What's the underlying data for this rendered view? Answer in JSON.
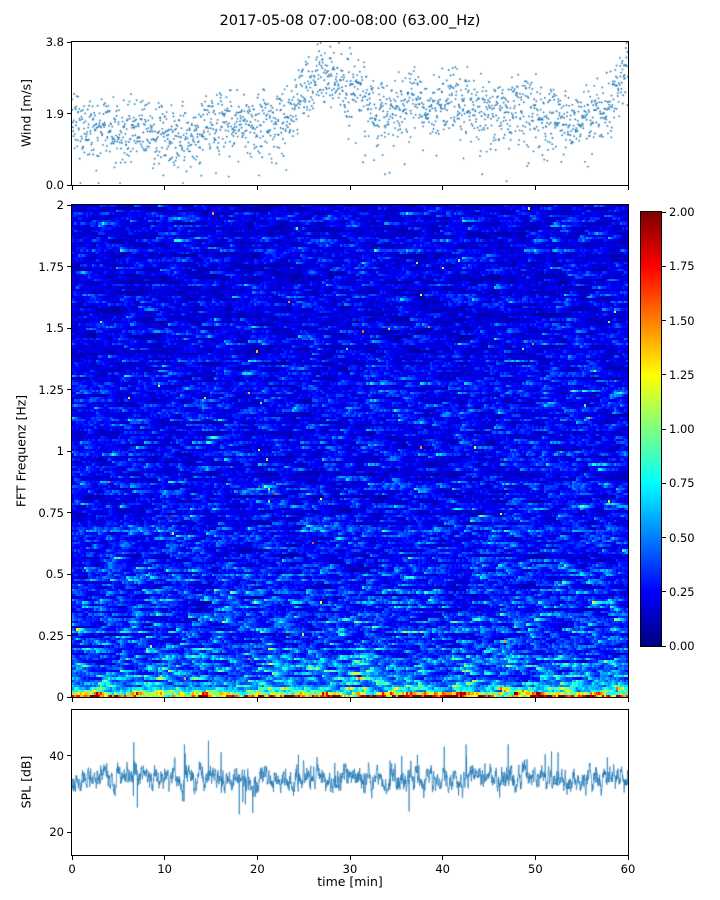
{
  "title": "2017-05-08 07:00-08:00 (63.00_Hz)",
  "colors": {
    "scatter": "#1f77b4",
    "line": "#1f77b4",
    "spine": "#000000",
    "background": "#ffffff"
  },
  "xaxis": {
    "label": "time [min]",
    "lim": [
      0,
      60
    ],
    "ticks": [
      {
        "v": 0,
        "label": "0"
      },
      {
        "v": 10,
        "label": "10"
      },
      {
        "v": 20,
        "label": "20"
      },
      {
        "v": 30,
        "label": "30"
      },
      {
        "v": 40,
        "label": "40"
      },
      {
        "v": 50,
        "label": "50"
      },
      {
        "v": 60,
        "label": "60"
      }
    ]
  },
  "colorbar": {
    "colormap": "jet",
    "lim": [
      0,
      2
    ],
    "ticks": [
      {
        "v": 0.0,
        "label": "0.00"
      },
      {
        "v": 0.25,
        "label": "0.25"
      },
      {
        "v": 0.5,
        "label": "0.50"
      },
      {
        "v": 0.75,
        "label": "0.75"
      },
      {
        "v": 1.0,
        "label": "1.00"
      },
      {
        "v": 1.25,
        "label": "1.25"
      },
      {
        "v": 1.5,
        "label": "1.50"
      },
      {
        "v": 1.75,
        "label": "1.75"
      },
      {
        "v": 2.0,
        "label": "2.00"
      }
    ]
  },
  "chart_data": [
    {
      "type": "scatter",
      "name": "wind",
      "ylabel": "Wind [m/s]",
      "ylim": [
        0,
        3.8
      ],
      "yticks": [
        {
          "v": 0.0,
          "label": "0.0"
        },
        {
          "v": 1.9,
          "label": "1.9"
        },
        {
          "v": 3.8,
          "label": "3.8"
        }
      ],
      "xlim": [
        0,
        60
      ],
      "marker": "point",
      "points": 1900,
      "spread": 0.42,
      "seed": 20170508,
      "profile_x": [
        0,
        2,
        5,
        8,
        11,
        13,
        15,
        17,
        19,
        21,
        23,
        25,
        27,
        29,
        31,
        33,
        35,
        37,
        39,
        41,
        43,
        45,
        47,
        49,
        51,
        53,
        55,
        57,
        58.5,
        60
      ],
      "profile_mean": [
        1.6,
        1.5,
        1.45,
        1.4,
        1.25,
        1.2,
        1.6,
        1.75,
        1.6,
        1.55,
        1.7,
        2.5,
        3.0,
        2.7,
        2.4,
        2.1,
        2.0,
        2.3,
        2.0,
        2.4,
        2.1,
        1.9,
        1.9,
        2.1,
        1.8,
        1.7,
        1.75,
        1.9,
        2.5,
        3.1
      ]
    },
    {
      "type": "heatmap",
      "name": "spectrogram",
      "ylabel": "FFT Frequenz [Hz]",
      "ylim": [
        0,
        2
      ],
      "xlim": [
        0,
        60
      ],
      "yticks": [
        {
          "v": 0,
          "label": "0"
        },
        {
          "v": 0.25,
          "label": "0.25"
        },
        {
          "v": 0.5,
          "label": "0.5"
        },
        {
          "v": 0.75,
          "label": "0.75"
        },
        {
          "v": 1,
          "label": "1"
        },
        {
          "v": 1.25,
          "label": "1.25"
        },
        {
          "v": 1.5,
          "label": "1.5"
        },
        {
          "v": 1.75,
          "label": "1.75"
        },
        {
          "v": 2,
          "label": "2"
        }
      ],
      "colormap": "jet",
      "clim": [
        0,
        2
      ],
      "grid": {
        "cols": 278,
        "rows": 200
      },
      "base": 0.22,
      "low_freq_gain": 0.25,
      "low_freq_scale": 0.5,
      "row_gain_jitter": 0.5,
      "streak_persistence": 0.72,
      "hot_spike_prob": 0.0008,
      "bottom_band_amp": 1.15,
      "bottom_band_scale": 0.022,
      "seed": 63
    },
    {
      "type": "line",
      "name": "spl",
      "ylabel": "SPL [dB]",
      "ylim": [
        14,
        52
      ],
      "yticks": [
        {
          "v": 20,
          "label": "20"
        },
        {
          "v": 40,
          "label": "40"
        }
      ],
      "xlim": [
        0,
        60
      ],
      "mean": 34,
      "ar": 0.8,
      "sigma": 4.8,
      "spike_prob": 0.012,
      "spike_amp": 9,
      "points": 2800,
      "seed": 8
    }
  ]
}
